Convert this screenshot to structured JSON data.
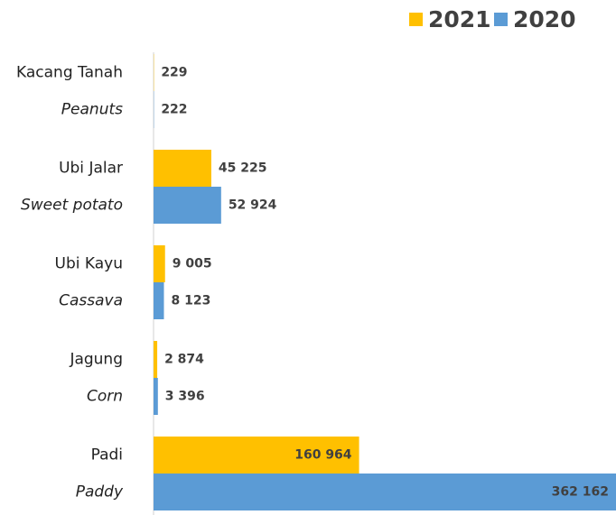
{
  "chart_data": {
    "type": "hbar",
    "categories": [
      "Kacang Tanah",
      "Ubi Jalar",
      "Ubi Kayu",
      "Jagung",
      "Padi"
    ],
    "categories_en": [
      "Peanuts",
      "Sweet potato",
      "Cassava",
      "Corn",
      "Paddy"
    ],
    "xlim": [
      0,
      362162
    ],
    "legend": "top-right",
    "series": [
      {
        "name": "2021",
        "color": "#FFC000",
        "values": [
          229,
          45225,
          9005,
          2874,
          160964
        ],
        "value_labels": [
          "229",
          "45 225",
          "9 005",
          "2 874",
          "160 964"
        ]
      },
      {
        "name": "2020",
        "color": "#5B9BD5",
        "values": [
          222,
          52924,
          8123,
          3396,
          362162
        ],
        "value_labels": [
          "222",
          "52 924",
          "8 123",
          "3 396",
          "362 162"
        ]
      }
    ]
  }
}
